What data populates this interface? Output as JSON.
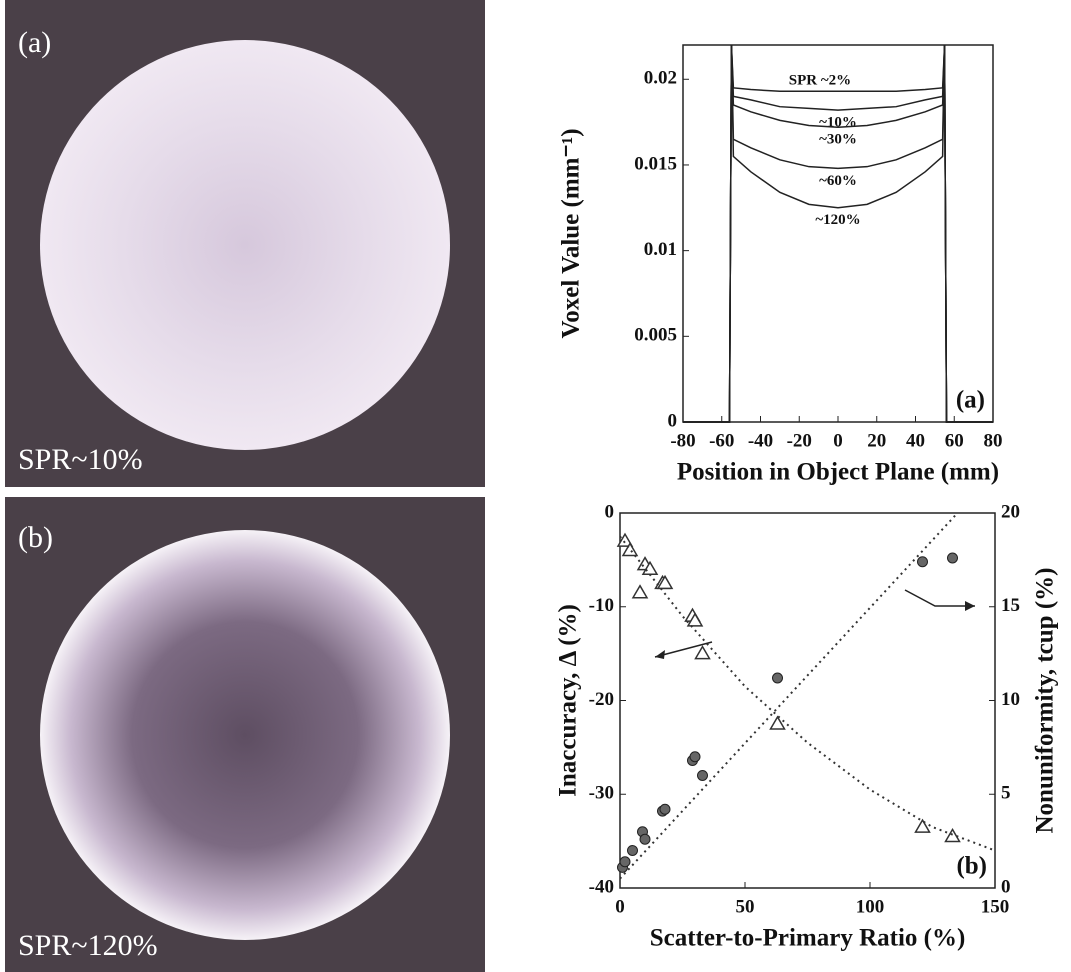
{
  "images": [
    {
      "label": "(a)",
      "caption": "SPR~10%"
    },
    {
      "label": "(b)",
      "caption": "SPR~120%"
    }
  ],
  "chart_data": [
    {
      "type": "line",
      "xlabel": "Position in Object Plane (mm)",
      "ylabel": "Voxel Value (mm⁻¹)",
      "panel_label": "(a)",
      "xlim": [
        -80,
        80
      ],
      "xticks": [
        -80,
        -60,
        -40,
        -20,
        0,
        20,
        40,
        60,
        80
      ],
      "ylim": [
        0,
        0.022
      ],
      "yticks": [
        0,
        0.005,
        0.01,
        0.015,
        0.02
      ],
      "x": [
        -80,
        -60,
        -56,
        -55,
        -54,
        -45,
        -30,
        -15,
        0,
        15,
        30,
        45,
        54,
        55,
        56,
        60,
        80
      ],
      "color": "#222222",
      "series": [
        {
          "name": "SPR ~2%",
          "values": [
            0,
            0,
            0,
            0.022,
            0.0195,
            0.0194,
            0.0193,
            0.0193,
            0.0193,
            0.0193,
            0.0193,
            0.0194,
            0.0195,
            0.022,
            0,
            0,
            0
          ]
        },
        {
          "name": "~10%",
          "values": [
            0,
            0,
            0,
            0.022,
            0.019,
            0.0188,
            0.0184,
            0.0183,
            0.0182,
            0.0183,
            0.0184,
            0.0188,
            0.019,
            0.022,
            0,
            0,
            0
          ]
        },
        {
          "name": "~30%",
          "values": [
            0,
            0,
            0,
            0.022,
            0.0185,
            0.0181,
            0.0176,
            0.0173,
            0.0172,
            0.0173,
            0.0176,
            0.0181,
            0.0185,
            0.022,
            0,
            0,
            0
          ]
        },
        {
          "name": "~60%",
          "values": [
            0,
            0,
            0,
            0.022,
            0.0165,
            0.016,
            0.0153,
            0.0149,
            0.0148,
            0.0149,
            0.0153,
            0.016,
            0.0165,
            0.022,
            0,
            0,
            0
          ]
        },
        {
          "name": "~120%",
          "values": [
            0,
            0,
            0,
            0.022,
            0.0155,
            0.0146,
            0.0134,
            0.0127,
            0.0125,
            0.0127,
            0.0134,
            0.0146,
            0.0155,
            0.022,
            0,
            0,
            0
          ]
        }
      ]
    },
    {
      "type": "scatter",
      "xlabel": "Scatter-to-Primary Ratio (%)",
      "ylabel": "Inaccuracy, Δ (%)",
      "y2label": "Nonuniformity, tcup (%)",
      "panel_label": "(b)",
      "xlim": [
        0,
        150
      ],
      "xticks": [
        0,
        50,
        100,
        150
      ],
      "ylim": [
        -40,
        0
      ],
      "yticks": [
        -40,
        -30,
        -20,
        -10,
        0
      ],
      "y2lim": [
        0,
        20
      ],
      "y2ticks": [
        0,
        5,
        10,
        15,
        20
      ],
      "series": [
        {
          "marker": "triangle",
          "color": "#333333",
          "x": [
            2,
            4,
            8,
            10,
            12,
            17,
            18,
            29,
            30,
            33,
            63,
            121,
            133
          ],
          "values": [
            -3,
            -4,
            -8.5,
            -5.5,
            -6,
            -7.5,
            -7.5,
            -11,
            -11.5,
            -15,
            -22.5,
            -33.5,
            -34.5
          ]
        },
        {
          "marker": "circle",
          "color": "#666666",
          "axis": "y2",
          "x": [
            1,
            2,
            5,
            9,
            10,
            17,
            18,
            29,
            30,
            33,
            63,
            121,
            133
          ],
          "values": [
            1.1,
            1.4,
            2,
            3,
            2.6,
            4.1,
            4.2,
            6.8,
            7,
            6,
            11.2,
            17.4,
            17.6
          ]
        },
        {
          "marker": "dotted",
          "color": "#333333",
          "x": [
            0,
            25,
            50,
            75,
            100,
            125,
            150
          ],
          "values": [
            -2.5,
            -11,
            -18.5,
            -24.5,
            -29.5,
            -33.5,
            -36
          ]
        },
        {
          "marker": "dotted",
          "color": "#333333",
          "axis": "y2",
          "x": [
            0,
            135
          ],
          "values": [
            0.5,
            20
          ]
        }
      ]
    }
  ]
}
